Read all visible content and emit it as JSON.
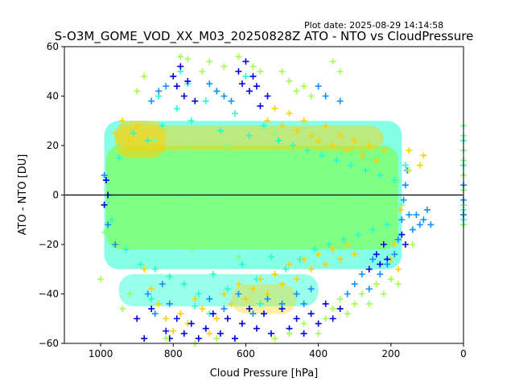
{
  "chart_data": {
    "type": "scatter",
    "title": "S-O3M_GOME_VOD_XX_M03_20250828Z ATO - NTO vs CloudPressure",
    "plot_date": "Plot date: 2025-08-29 14:14:58",
    "xlabel": "Cloud Pressure [hPa]",
    "ylabel": "ATO - NTO [DU]",
    "xlim": [
      1100,
      0
    ],
    "ylim": [
      -60,
      60
    ],
    "x_inverted": true,
    "x_ticks": [
      1000,
      800,
      600,
      400,
      200,
      0
    ],
    "y_ticks": [
      60,
      40,
      20,
      0,
      -20,
      -40,
      -60
    ],
    "x_tick_labels": [
      "1000",
      "800",
      "600",
      "400",
      "200",
      "0"
    ],
    "y_tick_labels": [
      "60",
      "40",
      "20",
      "0",
      "−20",
      "−40",
      "−60"
    ],
    "reference_line": {
      "y": 0,
      "color": "#000000"
    },
    "marker": "+",
    "grid": false,
    "legend": "none",
    "series": [
      {
        "color": "#80ff80",
        "points": [
          [
            980,
            5
          ],
          [
            960,
            -2
          ],
          [
            940,
            8
          ],
          [
            920,
            -10
          ],
          [
            900,
            12
          ],
          [
            880,
            3
          ],
          [
            860,
            -6
          ],
          [
            840,
            15
          ],
          [
            820,
            -14
          ],
          [
            800,
            6
          ],
          [
            780,
            -3
          ],
          [
            760,
            18
          ],
          [
            740,
            -18
          ],
          [
            720,
            10
          ],
          [
            700,
            -8
          ],
          [
            680,
            2
          ],
          [
            660,
            14
          ],
          [
            640,
            -12
          ],
          [
            620,
            7
          ],
          [
            600,
            -4
          ],
          [
            580,
            11
          ],
          [
            560,
            -16
          ],
          [
            540,
            4
          ],
          [
            520,
            -9
          ],
          [
            500,
            13
          ],
          [
            480,
            -1
          ],
          [
            460,
            9
          ],
          [
            440,
            -13
          ],
          [
            420,
            5
          ],
          [
            400,
            -7
          ],
          [
            380,
            16
          ],
          [
            360,
            -3
          ],
          [
            340,
            8
          ],
          [
            320,
            -11
          ],
          [
            300,
            2
          ],
          [
            280,
            12
          ],
          [
            260,
            -6
          ],
          [
            240,
            4
          ],
          [
            220,
            -9
          ],
          [
            200,
            1
          ],
          [
            180,
            6
          ],
          [
            170,
            -4
          ],
          [
            950,
            20
          ],
          [
            900,
            -20
          ],
          [
            850,
            22
          ],
          [
            750,
            -22
          ],
          [
            650,
            20
          ],
          [
            550,
            -20
          ],
          [
            450,
            18
          ],
          [
            350,
            -18
          ],
          [
            250,
            14
          ],
          [
            990,
            -15
          ],
          [
            975,
            14
          ],
          [
            620,
            -25
          ],
          [
            520,
            25
          ]
        ]
      },
      {
        "color": "#20ffd0",
        "points": [
          [
            970,
            -10
          ],
          [
            950,
            15
          ],
          [
            930,
            -22
          ],
          [
            910,
            25
          ],
          [
            890,
            -28
          ],
          [
            870,
            22
          ],
          [
            850,
            -30
          ],
          [
            830,
            28
          ],
          [
            810,
            -33
          ],
          [
            790,
            35
          ],
          [
            770,
            -36
          ],
          [
            750,
            30
          ],
          [
            730,
            -40
          ],
          [
            710,
            38
          ],
          [
            690,
            -32
          ],
          [
            670,
            26
          ],
          [
            650,
            -38
          ],
          [
            630,
            33
          ],
          [
            610,
            -28
          ],
          [
            590,
            24
          ],
          [
            570,
            -34
          ],
          [
            550,
            28
          ],
          [
            530,
            -25
          ],
          [
            510,
            22
          ],
          [
            490,
            -30
          ],
          [
            470,
            20
          ],
          [
            450,
            -26
          ],
          [
            430,
            18
          ],
          [
            410,
            -22
          ],
          [
            390,
            16
          ],
          [
            370,
            -20
          ],
          [
            350,
            14
          ],
          [
            330,
            -18
          ],
          [
            310,
            12
          ],
          [
            290,
            -16
          ],
          [
            270,
            10
          ],
          [
            250,
            -14
          ],
          [
            230,
            8
          ],
          [
            210,
            -12
          ],
          [
            190,
            6
          ],
          [
            160,
            12
          ],
          [
            780,
            50
          ],
          [
            760,
            45
          ],
          [
            740,
            -45
          ],
          [
            840,
            40
          ],
          [
            860,
            -42
          ],
          [
            680,
            42
          ],
          [
            700,
            -48
          ],
          [
            560,
            -44
          ],
          [
            600,
            48
          ]
        ]
      },
      {
        "color": "#ffd000",
        "points": [
          [
            960,
            25
          ],
          [
            940,
            30
          ],
          [
            920,
            22
          ],
          [
            900,
            28
          ],
          [
            880,
            -30
          ],
          [
            860,
            -38
          ],
          [
            840,
            -44
          ],
          [
            820,
            -50
          ],
          [
            800,
            -55
          ],
          [
            780,
            -48
          ],
          [
            760,
            -52
          ],
          [
            740,
            -42
          ],
          [
            720,
            -46
          ],
          [
            700,
            -56
          ],
          [
            680,
            -50
          ],
          [
            660,
            -40
          ],
          [
            640,
            -44
          ],
          [
            620,
            -36
          ],
          [
            600,
            -42
          ],
          [
            580,
            -38
          ],
          [
            560,
            -34
          ],
          [
            540,
            -40
          ],
          [
            520,
            -32
          ],
          [
            500,
            -36
          ],
          [
            480,
            -28
          ],
          [
            460,
            -34
          ],
          [
            440,
            -26
          ],
          [
            420,
            -30
          ],
          [
            400,
            -24
          ],
          [
            380,
            -28
          ],
          [
            360,
            -22
          ],
          [
            340,
            -26
          ],
          [
            320,
            -20
          ],
          [
            300,
            -24
          ],
          [
            540,
            30
          ],
          [
            520,
            35
          ],
          [
            500,
            28
          ],
          [
            480,
            33
          ],
          [
            460,
            26
          ],
          [
            440,
            30
          ],
          [
            420,
            24
          ],
          [
            400,
            22
          ],
          [
            380,
            28
          ],
          [
            360,
            20
          ],
          [
            340,
            24
          ],
          [
            320,
            18
          ],
          [
            300,
            22
          ],
          [
            280,
            16
          ],
          [
            260,
            20
          ],
          [
            240,
            14
          ],
          [
            220,
            18
          ],
          [
            200,
            -26
          ],
          [
            180,
            -30
          ],
          [
            190,
            -20
          ],
          [
            175,
            -6
          ],
          [
            120,
            12
          ],
          [
            150,
            18
          ],
          [
            110,
            16
          ]
        ]
      },
      {
        "color": "#0000e0",
        "points": [
          [
            800,
            48
          ],
          [
            790,
            44
          ],
          [
            780,
            52
          ],
          [
            770,
            40
          ],
          [
            760,
            46
          ],
          [
            740,
            38
          ],
          [
            620,
            50
          ],
          [
            610,
            45
          ],
          [
            600,
            54
          ],
          [
            590,
            42
          ],
          [
            580,
            48
          ],
          [
            570,
            44
          ],
          [
            560,
            36
          ],
          [
            540,
            40
          ],
          [
            820,
            -55
          ],
          [
            810,
            -58
          ],
          [
            790,
            -50
          ],
          [
            770,
            -56
          ],
          [
            750,
            -52
          ],
          [
            730,
            -58
          ],
          [
            710,
            -54
          ],
          [
            690,
            -48
          ],
          [
            670,
            -56
          ],
          [
            650,
            -50
          ],
          [
            630,
            -58
          ],
          [
            610,
            -52
          ],
          [
            590,
            -46
          ],
          [
            570,
            -54
          ],
          [
            550,
            -48
          ],
          [
            530,
            -56
          ],
          [
            500,
            -46
          ],
          [
            480,
            -54
          ],
          [
            460,
            -50
          ],
          [
            440,
            -56
          ],
          [
            420,
            -48
          ],
          [
            400,
            -52
          ],
          [
            380,
            -44
          ],
          [
            360,
            -50
          ],
          [
            340,
            -46
          ],
          [
            880,
            -58
          ],
          [
            900,
            -50
          ],
          [
            860,
            -46
          ],
          [
            980,
            0
          ],
          [
            990,
            -4
          ],
          [
            985,
            6
          ],
          [
            240,
            -24
          ],
          [
            230,
            -28
          ],
          [
            220,
            -20
          ],
          [
            210,
            -26
          ],
          [
            260,
            -30
          ],
          [
            170,
            -16
          ],
          [
            160,
            -20
          ]
        ]
      },
      {
        "color": "#1090ff",
        "points": [
          [
            700,
            45
          ],
          [
            680,
            42
          ],
          [
            660,
            40
          ],
          [
            640,
            38
          ],
          [
            860,
            38
          ],
          [
            840,
            42
          ],
          [
            820,
            44
          ],
          [
            400,
            44
          ],
          [
            380,
            40
          ],
          [
            340,
            38
          ],
          [
            320,
            -40
          ],
          [
            300,
            -36
          ],
          [
            280,
            -32
          ],
          [
            260,
            -38
          ],
          [
            250,
            -26
          ],
          [
            230,
            -32
          ],
          [
            210,
            -28
          ],
          [
            190,
            -24
          ],
          [
            180,
            -18
          ],
          [
            170,
            -10
          ],
          [
            165,
            -2
          ],
          [
            160,
            4
          ],
          [
            155,
            10
          ],
          [
            150,
            -8
          ],
          [
            140,
            -14
          ],
          [
            130,
            -8
          ],
          [
            120,
            -12
          ],
          [
            110,
            -10
          ],
          [
            100,
            -6
          ],
          [
            90,
            -12
          ],
          [
            870,
            -40
          ],
          [
            850,
            -48
          ],
          [
            830,
            -36
          ],
          [
            810,
            -44
          ],
          [
            700,
            -42
          ],
          [
            660,
            -46
          ],
          [
            620,
            -40
          ],
          [
            580,
            -48
          ],
          [
            540,
            -42
          ],
          [
            500,
            -44
          ],
          [
            460,
            -40
          ],
          [
            440,
            -44
          ],
          [
            420,
            -38
          ],
          [
            980,
            -12
          ],
          [
            990,
            8
          ],
          [
            960,
            -20
          ]
        ]
      },
      {
        "color": "#a0ff50",
        "points": [
          [
            780,
            56
          ],
          [
            760,
            55
          ],
          [
            720,
            50
          ],
          [
            700,
            54
          ],
          [
            660,
            52
          ],
          [
            620,
            56
          ],
          [
            580,
            52
          ],
          [
            560,
            50
          ],
          [
            500,
            50
          ],
          [
            480,
            46
          ],
          [
            460,
            42
          ],
          [
            440,
            44
          ],
          [
            420,
            40
          ],
          [
            360,
            54
          ],
          [
            340,
            50
          ],
          [
            880,
            48
          ],
          [
            900,
            42
          ],
          [
            820,
            -58
          ],
          [
            740,
            -60
          ],
          [
            680,
            -58
          ],
          [
            520,
            -58
          ],
          [
            480,
            -56
          ],
          [
            440,
            -52
          ],
          [
            400,
            -56
          ],
          [
            380,
            -50
          ],
          [
            360,
            -46
          ],
          [
            340,
            -42
          ],
          [
            320,
            -48
          ],
          [
            300,
            -44
          ],
          [
            280,
            -40
          ],
          [
            260,
            -44
          ],
          [
            240,
            -36
          ],
          [
            220,
            -40
          ],
          [
            200,
            -34
          ],
          [
            180,
            -36
          ],
          [
            1000,
            -34
          ],
          [
            940,
            -46
          ],
          [
            920,
            -40
          ],
          [
            150,
            10
          ],
          [
            140,
            -20
          ]
        ]
      },
      {
        "color": "#80ff80",
        "points": [
          [
            0,
            28
          ],
          [
            0,
            24
          ],
          [
            0,
            18
          ],
          [
            0,
            14
          ],
          [
            0,
            8
          ],
          [
            0,
            2
          ],
          [
            0,
            -4
          ],
          [
            0,
            -8
          ],
          [
            0,
            -12
          ]
        ]
      },
      {
        "color": "#20ffd0",
        "points": [
          [
            0,
            22
          ],
          [
            0,
            12
          ],
          [
            0,
            -6
          ],
          [
            0,
            -10
          ]
        ]
      },
      {
        "color": "#1090ff",
        "points": [
          [
            0,
            4
          ],
          [
            0,
            -2
          ],
          [
            0,
            -8
          ]
        ]
      }
    ]
  }
}
